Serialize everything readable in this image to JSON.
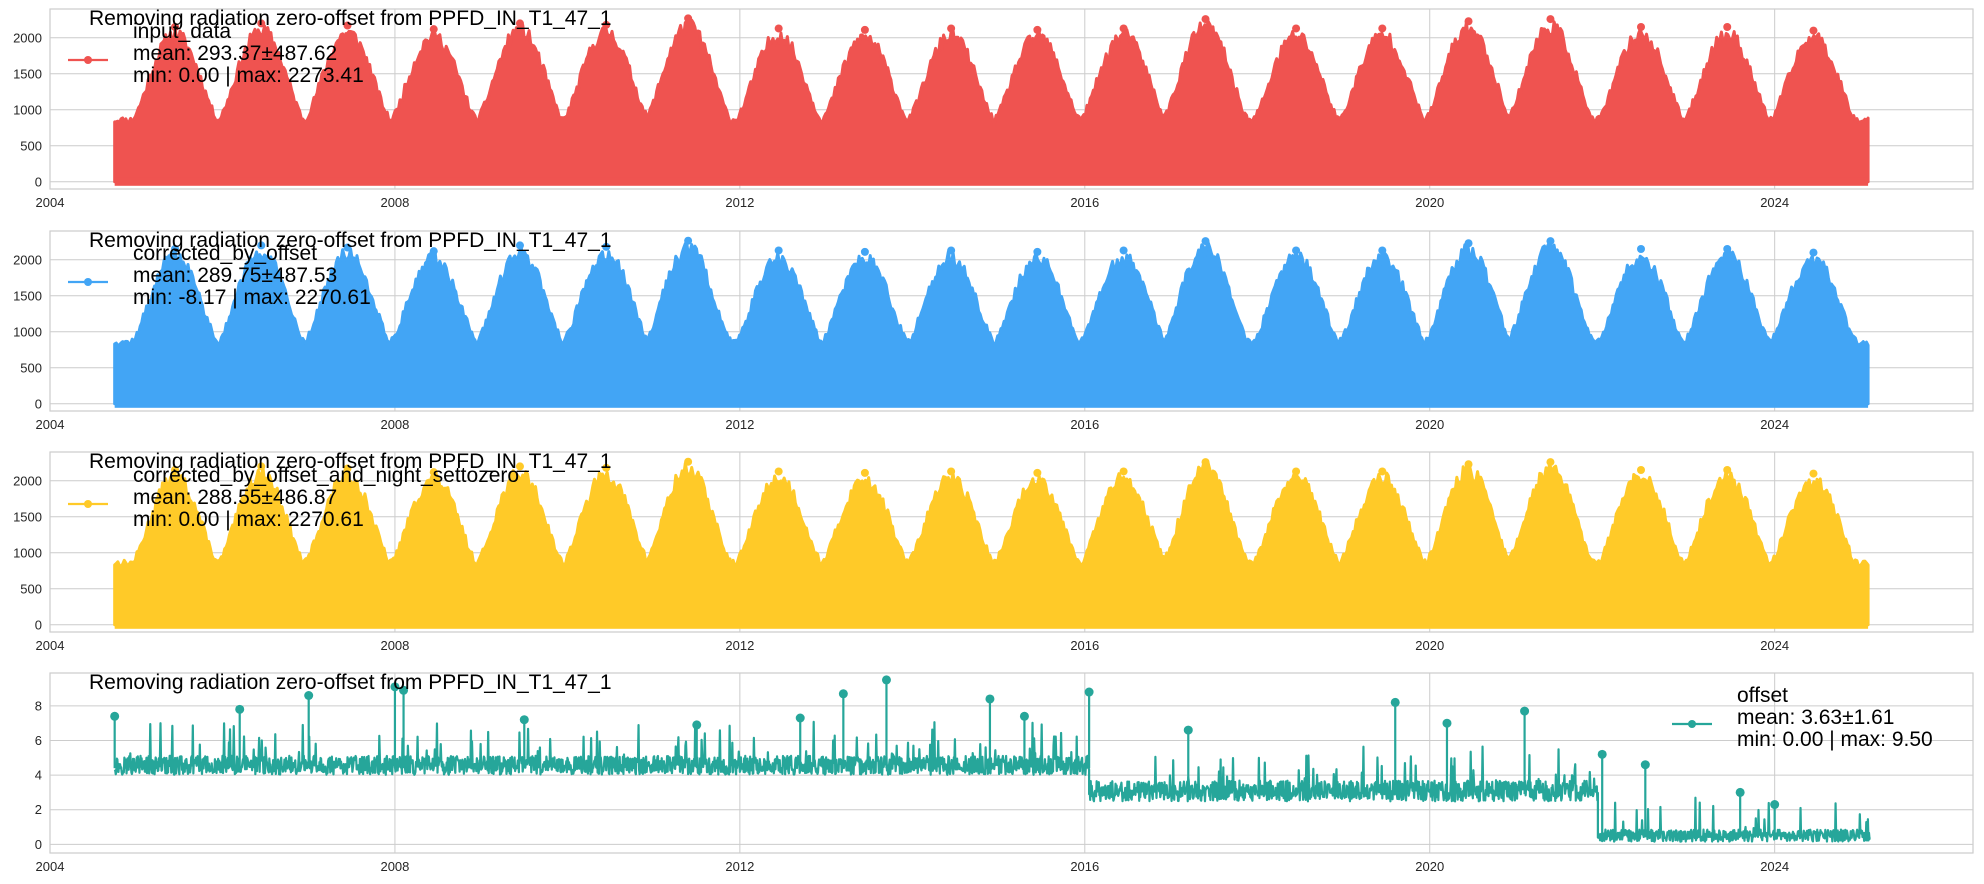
{
  "chart_data": [
    {
      "type": "line",
      "title": "Removing radiation zero-offset from PPFD_IN_T1_47_1",
      "xlabel": "",
      "ylabel": "",
      "xlim": [
        2004.0,
        2026.3
      ],
      "ylim": [
        -100,
        2400
      ],
      "x_ticks": [
        "2004",
        "2008",
        "2012",
        "2016",
        "2020",
        "2024"
      ],
      "y_ticks": [
        "0",
        "500",
        "1000",
        "1500",
        "2000"
      ],
      "grid": true,
      "legend_position": "upper-left",
      "series": [
        {
          "name": "input_data",
          "color": "#ef5350",
          "data_range": [
            "2004-10",
            "2025-02"
          ],
          "stats_label": "mean: 293.37±487.62",
          "range_label": "min: 0.00  |  max: 2273.41",
          "annual_peaks": [
            {
              "x": 2005.45,
              "y": 2150
            },
            {
              "x": 2006.45,
              "y": 2200
            },
            {
              "x": 2007.45,
              "y": 2170
            },
            {
              "x": 2008.45,
              "y": 2120
            },
            {
              "x": 2009.45,
              "y": 2200
            },
            {
              "x": 2010.45,
              "y": 2180
            },
            {
              "x": 2011.4,
              "y": 2270
            },
            {
              "x": 2012.45,
              "y": 2130
            },
            {
              "x": 2013.45,
              "y": 2110
            },
            {
              "x": 2014.45,
              "y": 2130
            },
            {
              "x": 2015.45,
              "y": 2110
            },
            {
              "x": 2016.45,
              "y": 2130
            },
            {
              "x": 2017.4,
              "y": 2260
            },
            {
              "x": 2018.45,
              "y": 2130
            },
            {
              "x": 2019.45,
              "y": 2130
            },
            {
              "x": 2020.45,
              "y": 2230
            },
            {
              "x": 2021.4,
              "y": 2260
            },
            {
              "x": 2022.45,
              "y": 2150
            },
            {
              "x": 2023.45,
              "y": 2150
            },
            {
              "x": 2024.45,
              "y": 2100
            }
          ],
          "winter_floor": 900
        }
      ]
    },
    {
      "type": "line",
      "title": "Removing radiation zero-offset from PPFD_IN_T1_47_1",
      "xlabel": "",
      "ylabel": "",
      "xlim": [
        2004.0,
        2026.3
      ],
      "ylim": [
        -100,
        2400
      ],
      "x_ticks": [
        "2004",
        "2008",
        "2012",
        "2016",
        "2020",
        "2024"
      ],
      "y_ticks": [
        "0",
        "500",
        "1000",
        "1500",
        "2000"
      ],
      "grid": true,
      "legend_position": "upper-left",
      "series": [
        {
          "name": "corrected_by_offset",
          "color": "#42a5f5",
          "data_range": [
            "2004-10",
            "2025-02"
          ],
          "stats_label": "mean: 289.75±487.53",
          "range_label": "min: -8.17  |  max: 2270.61",
          "annual_peaks": [
            {
              "x": 2005.45,
              "y": 2150
            },
            {
              "x": 2006.45,
              "y": 2200
            },
            {
              "x": 2007.45,
              "y": 2170
            },
            {
              "x": 2008.45,
              "y": 2120
            },
            {
              "x": 2009.45,
              "y": 2200
            },
            {
              "x": 2010.45,
              "y": 2180
            },
            {
              "x": 2011.4,
              "y": 2265
            },
            {
              "x": 2012.45,
              "y": 2130
            },
            {
              "x": 2013.45,
              "y": 2110
            },
            {
              "x": 2014.45,
              "y": 2130
            },
            {
              "x": 2015.45,
              "y": 2110
            },
            {
              "x": 2016.45,
              "y": 2130
            },
            {
              "x": 2017.4,
              "y": 2260
            },
            {
              "x": 2018.45,
              "y": 2130
            },
            {
              "x": 2019.45,
              "y": 2130
            },
            {
              "x": 2020.45,
              "y": 2230
            },
            {
              "x": 2021.4,
              "y": 2260
            },
            {
              "x": 2022.45,
              "y": 2150
            },
            {
              "x": 2023.45,
              "y": 2150
            },
            {
              "x": 2024.45,
              "y": 2100
            }
          ],
          "winter_floor": 900
        }
      ]
    },
    {
      "type": "line",
      "title": "Removing radiation zero-offset from PPFD_IN_T1_47_1",
      "xlabel": "",
      "ylabel": "",
      "xlim": [
        2004.0,
        2026.3
      ],
      "ylim": [
        -100,
        2400
      ],
      "x_ticks": [
        "2004",
        "2008",
        "2012",
        "2016",
        "2020",
        "2024"
      ],
      "y_ticks": [
        "0",
        "500",
        "1000",
        "1500",
        "2000"
      ],
      "grid": true,
      "legend_position": "upper-left",
      "series": [
        {
          "name": "corrected_by_offset_and_night_settozero",
          "color": "#ffca28",
          "data_range": [
            "2004-10",
            "2025-02"
          ],
          "stats_label": "mean: 288.55±486.87",
          "range_label": "min: 0.00  |  max: 2270.61",
          "annual_peaks": [
            {
              "x": 2005.45,
              "y": 2150
            },
            {
              "x": 2006.45,
              "y": 2200
            },
            {
              "x": 2007.45,
              "y": 2170
            },
            {
              "x": 2008.45,
              "y": 2120
            },
            {
              "x": 2009.45,
              "y": 2200
            },
            {
              "x": 2010.45,
              "y": 2180
            },
            {
              "x": 2011.4,
              "y": 2265
            },
            {
              "x": 2012.45,
              "y": 2130
            },
            {
              "x": 2013.45,
              "y": 2110
            },
            {
              "x": 2014.45,
              "y": 2130
            },
            {
              "x": 2015.45,
              "y": 2110
            },
            {
              "x": 2016.45,
              "y": 2130
            },
            {
              "x": 2017.4,
              "y": 2260
            },
            {
              "x": 2018.45,
              "y": 2130
            },
            {
              "x": 2019.45,
              "y": 2130
            },
            {
              "x": 2020.45,
              "y": 2230
            },
            {
              "x": 2021.4,
              "y": 2260
            },
            {
              "x": 2022.45,
              "y": 2150
            },
            {
              "x": 2023.45,
              "y": 2150
            },
            {
              "x": 2024.45,
              "y": 2100
            }
          ],
          "winter_floor": 900
        }
      ]
    },
    {
      "type": "line",
      "title": "Removing radiation zero-offset from PPFD_IN_T1_47_1",
      "xlabel": "",
      "ylabel": "",
      "xlim": [
        2004.0,
        2026.3
      ],
      "ylim": [
        -0.5,
        9.9
      ],
      "x_ticks": [
        "2004",
        "2008",
        "2012",
        "2016",
        "2020",
        "2024"
      ],
      "y_ticks": [
        "0",
        "2",
        "4",
        "6",
        "8"
      ],
      "grid": true,
      "legend_position": "center-right",
      "series": [
        {
          "name": "offset",
          "color": "#26a69a",
          "data_range": [
            "2004-10",
            "2025-02"
          ],
          "stats_label": "mean: 3.63±1.61",
          "range_label": "min: 0.00  |  max: 9.50",
          "segments": [
            {
              "from": 2004.75,
              "to": 2016.05,
              "level": 4.4,
              "noise": 0.55
            },
            {
              "from": 2016.05,
              "to": 2021.95,
              "level": 2.9,
              "noise": 0.6
            },
            {
              "from": 2021.95,
              "to": 2025.1,
              "level": 0.4,
              "noise": 0.35
            }
          ],
          "spikes": [
            {
              "x": 2004.75,
              "y": 7.4
            },
            {
              "x": 2006.2,
              "y": 7.8
            },
            {
              "x": 2007.0,
              "y": 8.6
            },
            {
              "x": 2008.0,
              "y": 9.1
            },
            {
              "x": 2008.1,
              "y": 8.9
            },
            {
              "x": 2009.5,
              "y": 7.2
            },
            {
              "x": 2011.5,
              "y": 6.9
            },
            {
              "x": 2012.7,
              "y": 7.3
            },
            {
              "x": 2013.2,
              "y": 8.7
            },
            {
              "x": 2013.7,
              "y": 9.5
            },
            {
              "x": 2014.9,
              "y": 8.4
            },
            {
              "x": 2015.3,
              "y": 7.4
            },
            {
              "x": 2016.05,
              "y": 8.8
            },
            {
              "x": 2017.2,
              "y": 6.6
            },
            {
              "x": 2019.6,
              "y": 8.2
            },
            {
              "x": 2020.2,
              "y": 7.0
            },
            {
              "x": 2021.1,
              "y": 7.7
            },
            {
              "x": 2022.0,
              "y": 5.2
            },
            {
              "x": 2022.5,
              "y": 4.6
            },
            {
              "x": 2023.6,
              "y": 3.0
            },
            {
              "x": 2024.0,
              "y": 2.3
            }
          ]
        }
      ]
    }
  ]
}
